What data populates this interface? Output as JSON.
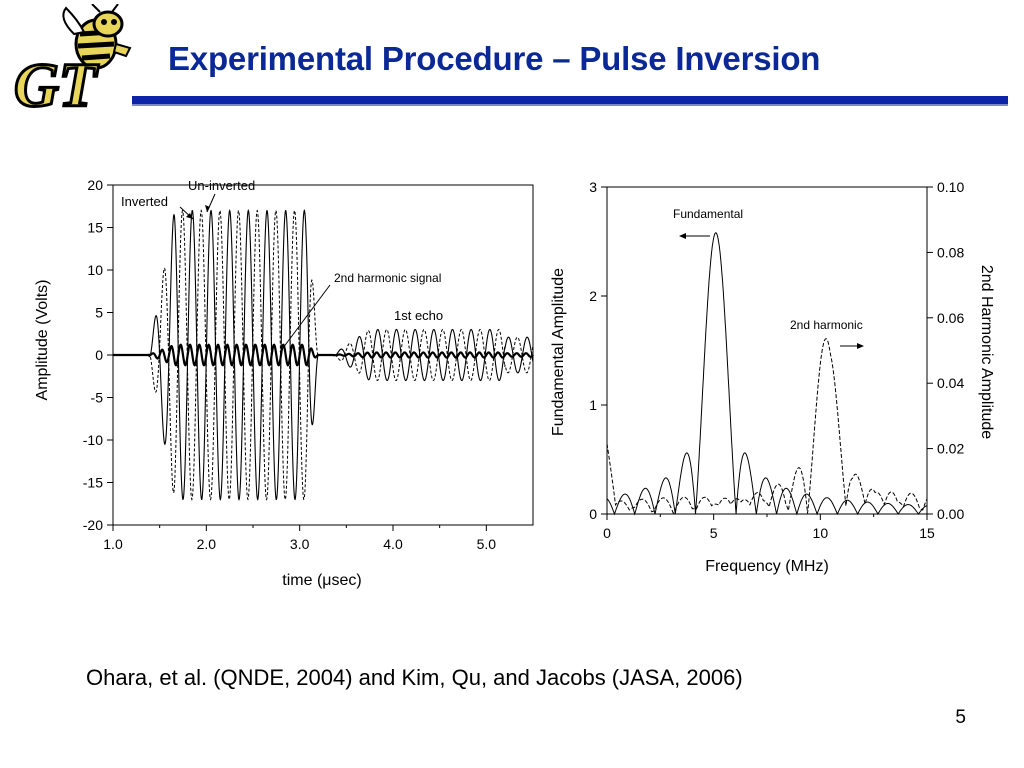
{
  "slide": {
    "title": "Experimental Procedure – Pulse Inversion",
    "citation": "Ohara, et al. (QNDE, 2004) and Kim, Qu, and Jacobs (JASA, 2006)",
    "page_number": "5",
    "logo_text": "GT",
    "accent_color": "#0d23a8",
    "title_color": "#0a2896",
    "logo_color": "#e8d65a"
  },
  "chart_data": [
    {
      "type": "line",
      "xlabel": "time (μsec)",
      "ylabel": "Amplitude (Volts)",
      "xlim": [
        1.0,
        5.5
      ],
      "ylim": [
        -20,
        20
      ],
      "x_ticks": [
        "1.0",
        "2.0",
        "3.0",
        "4.0",
        "5.0"
      ],
      "y_ticks": [
        "20",
        "15",
        "10",
        "5",
        "0",
        "-5",
        "-10",
        "-15",
        "-20"
      ],
      "signal": {
        "burst_start": 1.38,
        "burst_end": 3.2,
        "frequency_mhz": 5.0,
        "peak_amplitude": 17,
        "echo_start": 3.35,
        "echo_end": 5.5,
        "echo_amplitude": 3
      },
      "series": [
        {
          "name": "Un-inverted",
          "style": "solid"
        },
        {
          "name": "Inverted",
          "style": "dashed"
        },
        {
          "name": "2nd harmonic signal",
          "style": "solid-bold"
        }
      ],
      "annotations": [
        "Un-inverted",
        "Inverted",
        "2nd harmonic signal",
        "1st echo"
      ]
    },
    {
      "type": "line",
      "xlabel": "Frequency (MHz)",
      "ylabel": "Fundamental Amplitude",
      "y2label": "2nd Harmonic Amplitude",
      "xlim": [
        0,
        15
      ],
      "ylim": [
        0,
        3
      ],
      "y2lim": [
        0.0,
        0.1
      ],
      "x_ticks": [
        "0",
        "5",
        "10",
        "15"
      ],
      "y_ticks": [
        "0",
        "1",
        "2",
        "3"
      ],
      "y2_ticks": [
        "0.00",
        "0.02",
        "0.04",
        "0.06",
        "0.08",
        "0.10"
      ],
      "series": [
        {
          "name": "Fundamental",
          "style": "solid",
          "peak_x": 5.1,
          "peak_y": 2.58
        },
        {
          "name": "2nd harmonic",
          "style": "dashed",
          "peak_x": 10.3,
          "peak_y2": 0.052
        }
      ],
      "annotations": [
        "Fundamental",
        "2nd harmonic"
      ]
    }
  ]
}
